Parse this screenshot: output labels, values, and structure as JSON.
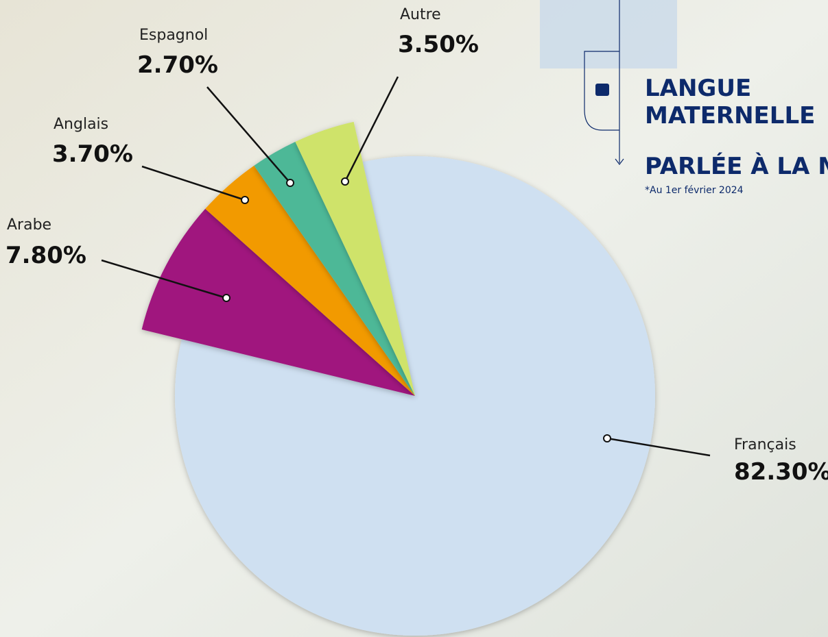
{
  "chart_data": {
    "type": "pie",
    "title": [
      "LANGUE",
      "MATERNELLE",
      "PARLÉE À LA M"
    ],
    "subtitle": "*Au 1er février 2024",
    "categories": [
      "Français",
      "Arabe",
      "Anglais",
      "Espagnol",
      "Autre"
    ],
    "values": [
      82.3,
      7.8,
      3.7,
      2.7,
      3.5
    ],
    "value_labels": [
      "82.30%",
      "7.80%",
      "3.70%",
      "2.70%",
      "3.50%"
    ],
    "colors": [
      "#cfe0f1",
      "#a0177e",
      "#f29a00",
      "#4db897",
      "#cfe36a"
    ]
  }
}
